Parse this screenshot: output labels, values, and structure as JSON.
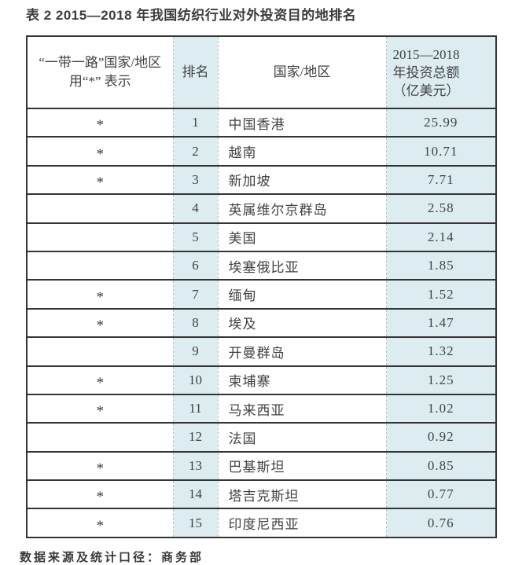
{
  "title": "表 2 2015—2018 年我国纺织行业对外投资目的地排名",
  "source_note": "数据来源及统计口径：商务部",
  "colors": {
    "highlight_blue": "#dcecf1",
    "border_dark": "#343434",
    "border_dashed_light": "#aec3ca",
    "text": "#424242"
  },
  "table": {
    "columns": [
      {
        "label": "“一带一路”国家/地区\n用“*” 表示"
      },
      {
        "label": "排名"
      },
      {
        "label": "国家/地区"
      },
      {
        "label": "2015—2018\n年投资总额\n（亿美元）"
      }
    ],
    "rows": [
      {
        "star": "*",
        "rank": "1",
        "country": "中国香港",
        "amount": "25.99"
      },
      {
        "star": "*",
        "rank": "2",
        "country": "越南",
        "amount": "10.71"
      },
      {
        "star": "*",
        "rank": "3",
        "country": "新加坡",
        "amount": "7.71"
      },
      {
        "star": "",
        "rank": "4",
        "country": "英属维尔京群岛",
        "amount": "2.58"
      },
      {
        "star": "",
        "rank": "5",
        "country": "美国",
        "amount": "2.14"
      },
      {
        "star": "",
        "rank": "6",
        "country": "埃塞俄比亚",
        "amount": "1.85"
      },
      {
        "star": "*",
        "rank": "7",
        "country": "缅甸",
        "amount": "1.52"
      },
      {
        "star": "*",
        "rank": "8",
        "country": "埃及",
        "amount": "1.47"
      },
      {
        "star": "",
        "rank": "9",
        "country": "开曼群岛",
        "amount": "1.32"
      },
      {
        "star": "*",
        "rank": "10",
        "country": "柬埔寨",
        "amount": "1.25"
      },
      {
        "star": "*",
        "rank": "11",
        "country": "马来西亚",
        "amount": "1.02"
      },
      {
        "star": "",
        "rank": "12",
        "country": "法国",
        "amount": "0.92"
      },
      {
        "star": "*",
        "rank": "13",
        "country": "巴基斯坦",
        "amount": "0.85"
      },
      {
        "star": "*",
        "rank": "14",
        "country": "塔吉克斯坦",
        "amount": "0.77"
      },
      {
        "star": "*",
        "rank": "15",
        "country": "印度尼西亚",
        "amount": "0.76"
      }
    ]
  }
}
